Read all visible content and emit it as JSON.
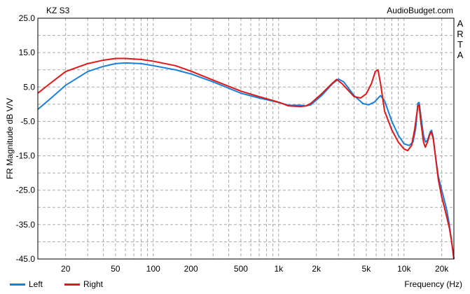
{
  "chart_data": {
    "type": "line",
    "title": "KZ S3",
    "source": "AudioBudget.com",
    "side_label": [
      "A",
      "R",
      "T",
      "A"
    ],
    "xlabel": "Frequency (Hz)",
    "ylabel": "FR Magnitude dB V/V",
    "x_scale": "log",
    "xlim": [
      12,
      25000
    ],
    "ylim": [
      -45,
      25
    ],
    "x_ticks": [
      {
        "value": 20,
        "label": "20"
      },
      {
        "value": 50,
        "label": "50"
      },
      {
        "value": 100,
        "label": "100"
      },
      {
        "value": 200,
        "label": "200"
      },
      {
        "value": 500,
        "label": "500"
      },
      {
        "value": 1000,
        "label": "1k"
      },
      {
        "value": 2000,
        "label": "2k"
      },
      {
        "value": 5000,
        "label": "5k"
      },
      {
        "value": 10000,
        "label": "10k"
      },
      {
        "value": 20000,
        "label": "20k"
      }
    ],
    "y_ticks": [
      {
        "value": 25,
        "label": "25.0"
      },
      {
        "value": 15,
        "label": "15.0"
      },
      {
        "value": 5,
        "label": "5.0"
      },
      {
        "value": -5,
        "label": "-5.0"
      },
      {
        "value": -15,
        "label": "-15.0"
      },
      {
        "value": -25,
        "label": "-25.0"
      },
      {
        "value": -35,
        "label": "-35.0"
      },
      {
        "value": -45,
        "label": "-45.0"
      }
    ],
    "grid": true,
    "legend_position": "bottom-left",
    "series": [
      {
        "name": "Left",
        "color": "#1a7fd6",
        "points": [
          [
            12,
            -1.5
          ],
          [
            15,
            1.5
          ],
          [
            20,
            5.5
          ],
          [
            30,
            9.5
          ],
          [
            40,
            11.0
          ],
          [
            50,
            11.8
          ],
          [
            60,
            12.0
          ],
          [
            80,
            11.8
          ],
          [
            100,
            11.2
          ],
          [
            150,
            10.0
          ],
          [
            200,
            8.8
          ],
          [
            300,
            6.5
          ],
          [
            500,
            3.2
          ],
          [
            700,
            1.8
          ],
          [
            1000,
            0.5
          ],
          [
            1200,
            -0.3
          ],
          [
            1500,
            -0.3
          ],
          [
            1650,
            -0.5
          ],
          [
            1800,
            -0.2
          ],
          [
            2200,
            2.5
          ],
          [
            2700,
            6.0
          ],
          [
            3000,
            7.3
          ],
          [
            3300,
            6.5
          ],
          [
            4000,
            2.5
          ],
          [
            4700,
            0.2
          ],
          [
            5200,
            -0.2
          ],
          [
            5800,
            0.6
          ],
          [
            6500,
            2.5
          ],
          [
            7000,
            1.0
          ],
          [
            8000,
            -5.0
          ],
          [
            9000,
            -9.0
          ],
          [
            10000,
            -11.5
          ],
          [
            11000,
            -12.0
          ],
          [
            11800,
            -11.0
          ],
          [
            12400,
            -7.0
          ],
          [
            12900,
            0.3
          ],
          [
            13200,
            0.5
          ],
          [
            13600,
            -3.0
          ],
          [
            14300,
            -9.0
          ],
          [
            14800,
            -11.0
          ],
          [
            15400,
            -10.5
          ],
          [
            16200,
            -8.0
          ],
          [
            16600,
            -7.6
          ],
          [
            17100,
            -9.5
          ],
          [
            17800,
            -15.0
          ],
          [
            18800,
            -21.0
          ],
          [
            20000,
            -25.0
          ],
          [
            21000,
            -28.0
          ],
          [
            22000,
            -31.0
          ],
          [
            23000,
            -35.0
          ],
          [
            24000,
            -40.0
          ],
          [
            25000,
            -45.0
          ]
        ]
      },
      {
        "name": "Right",
        "color": "#e01717",
        "points": [
          [
            12,
            3.2
          ],
          [
            15,
            6.0
          ],
          [
            20,
            9.5
          ],
          [
            30,
            11.8
          ],
          [
            40,
            12.8
          ],
          [
            50,
            13.3
          ],
          [
            60,
            13.3
          ],
          [
            80,
            13.0
          ],
          [
            100,
            12.5
          ],
          [
            150,
            11.2
          ],
          [
            200,
            9.6
          ],
          [
            300,
            7.0
          ],
          [
            500,
            3.8
          ],
          [
            700,
            2.2
          ],
          [
            1000,
            0.6
          ],
          [
            1200,
            -0.5
          ],
          [
            1500,
            -0.7
          ],
          [
            1650,
            -0.5
          ],
          [
            1800,
            0.2
          ],
          [
            2200,
            3.0
          ],
          [
            2700,
            6.2
          ],
          [
            2900,
            7.2
          ],
          [
            3200,
            6.0
          ],
          [
            4000,
            2.2
          ],
          [
            4500,
            1.8
          ],
          [
            5000,
            3.0
          ],
          [
            5500,
            6.0
          ],
          [
            5900,
            9.5
          ],
          [
            6200,
            10.0
          ],
          [
            6500,
            6.0
          ],
          [
            7000,
            -2.0
          ],
          [
            8000,
            -7.5
          ],
          [
            9000,
            -11.0
          ],
          [
            10000,
            -13.0
          ],
          [
            10700,
            -13.5
          ],
          [
            11500,
            -12.0
          ],
          [
            12200,
            -7.0
          ],
          [
            12900,
            -0.5
          ],
          [
            13200,
            -0.2
          ],
          [
            13600,
            -5.0
          ],
          [
            14300,
            -11.0
          ],
          [
            14800,
            -12.5
          ],
          [
            15400,
            -11.0
          ],
          [
            16000,
            -9.0
          ],
          [
            16500,
            -8.0
          ],
          [
            17100,
            -10.0
          ],
          [
            17800,
            -15.0
          ],
          [
            18800,
            -22.0
          ],
          [
            20000,
            -27.0
          ],
          [
            21000,
            -30.0
          ],
          [
            22000,
            -33.0
          ],
          [
            23000,
            -36.0
          ],
          [
            24000,
            -40.0
          ],
          [
            25000,
            -45.0
          ]
        ]
      }
    ]
  }
}
